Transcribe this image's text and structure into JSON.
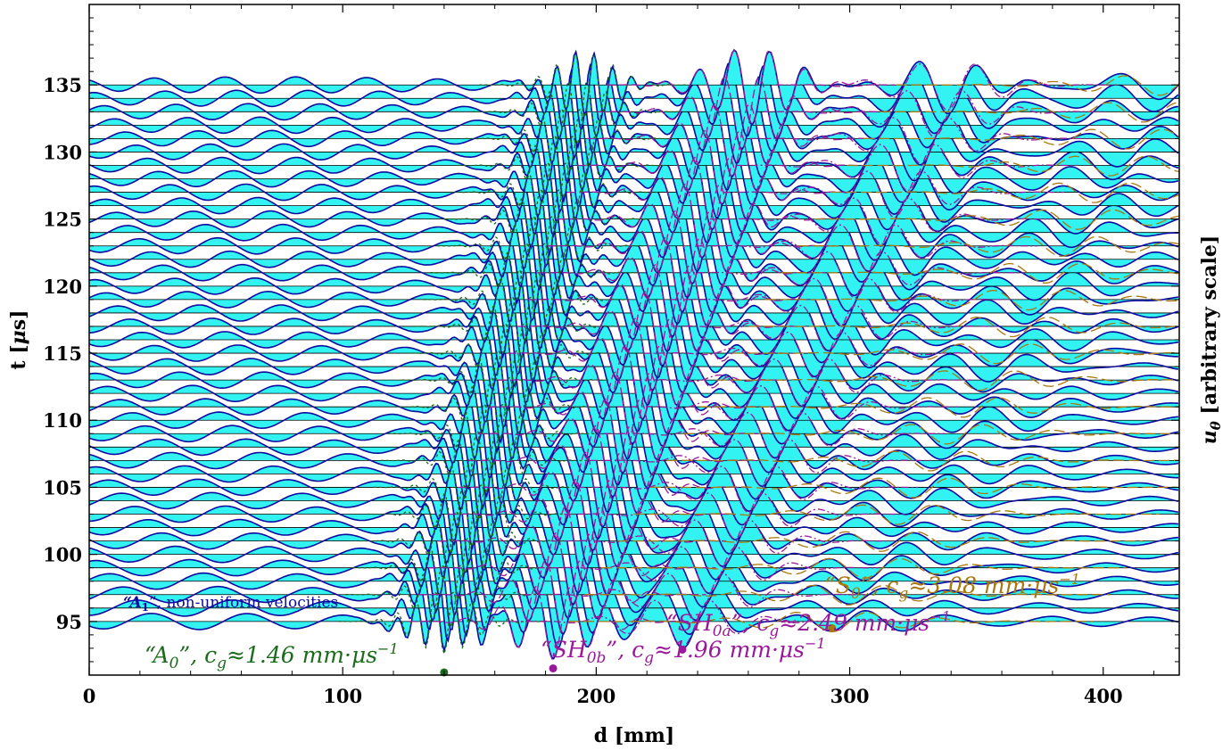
{
  "chart_data": {
    "type": "line",
    "xlabel": "d [mm]",
    "ylabel": "t [μs]",
    "right_label": "uθ [arbitrary scale]",
    "xlim": [
      0,
      430
    ],
    "ylim": [
      91,
      141
    ],
    "xticks": [
      "0",
      "100",
      "200",
      "300",
      "400"
    ],
    "yticks": [
      "95",
      "100",
      "105",
      "110",
      "115",
      "120",
      "125",
      "130",
      "135"
    ],
    "grid": false,
    "legend": "none",
    "colors": {
      "trace_line": "#0b0ba0",
      "trace_fill": "#33f2f2",
      "A0": "#1a6b1a",
      "SH0b": "#9a199a",
      "SH0a": "#9a199a",
      "S0": "#a8780e",
      "A1_label": "#0b0ba0"
    },
    "trace_times": [
      95,
      96,
      97,
      98,
      99,
      100,
      101,
      102,
      103,
      104,
      105,
      106,
      107,
      108,
      109,
      110,
      111,
      112,
      113,
      114,
      115,
      116,
      117,
      118,
      119,
      120,
      121,
      122,
      123,
      124,
      125,
      126,
      127,
      128,
      129,
      130,
      131,
      132,
      133,
      134,
      135
    ],
    "modes": [
      {
        "name": "A0",
        "group_velocity": 1.46,
        "onset_d": 140,
        "onset_t": 91.2
      },
      {
        "name": "SH0b",
        "group_velocity": 1.96,
        "onset_d": 183,
        "onset_t": 91.5
      },
      {
        "name": "SH0a",
        "group_velocity": 2.49,
        "onset_d": 234,
        "onset_t": 92.9
      },
      {
        "name": "S0",
        "group_velocity": 3.08,
        "onset_d": 293,
        "onset_t": 94.5
      }
    ],
    "annotations": {
      "A0": "“A₀”, c₉≈1.46 mm·μs⁻¹",
      "SH0b": "“SH₀b”, c₉≈1.96 mm·μs⁻¹",
      "SH0a": "“SH₀a”, c₉≈2.49 mm·μs⁻¹",
      "S0": "“S₀”, c₉≈3.08 mm·μs⁻¹",
      "A1": "“A₁”, non-uniform velocities"
    }
  },
  "labels": {
    "A0_prefix": "“A",
    "A0_sub": "0",
    "A0_mid": "”, c",
    "A0_g": "g",
    "A0_val": "≈1.46",
    "A0_unit": " mm·μs",
    "A0_exp": "−1",
    "SH0b_prefix": "“SH",
    "SH0b_sub": "0b",
    "SH0b_mid": "”, c",
    "SH0b_g": "g",
    "SH0b_val": "≈1.96",
    "SH0b_unit": " mm·μs",
    "SH0b_exp": "−1",
    "SH0a_prefix": "“SH",
    "SH0a_sub": "0a",
    "SH0a_mid": "”, c",
    "SH0a_g": "g",
    "SH0a_val": "≈2.49",
    "SH0a_unit": " mm·μs",
    "SH0a_exp": "−1",
    "S0_prefix": "“S",
    "S0_sub": "0",
    "S0_mid": "”, c",
    "S0_g": "g",
    "S0_val": "≈3.08",
    "S0_unit": " mm·μs",
    "S0_exp": "−1",
    "A1_prefix": "“A",
    "A1_sub": "1",
    "A1_rest": "”, non-uniform velocities",
    "xlabel": "d [mm]",
    "ylabel_t": "t [",
    "ylabel_mu": "μ",
    "ylabel_s": "s]",
    "right_u": "u",
    "right_theta": "θ",
    "right_rest": " [arbitrary scale]"
  }
}
